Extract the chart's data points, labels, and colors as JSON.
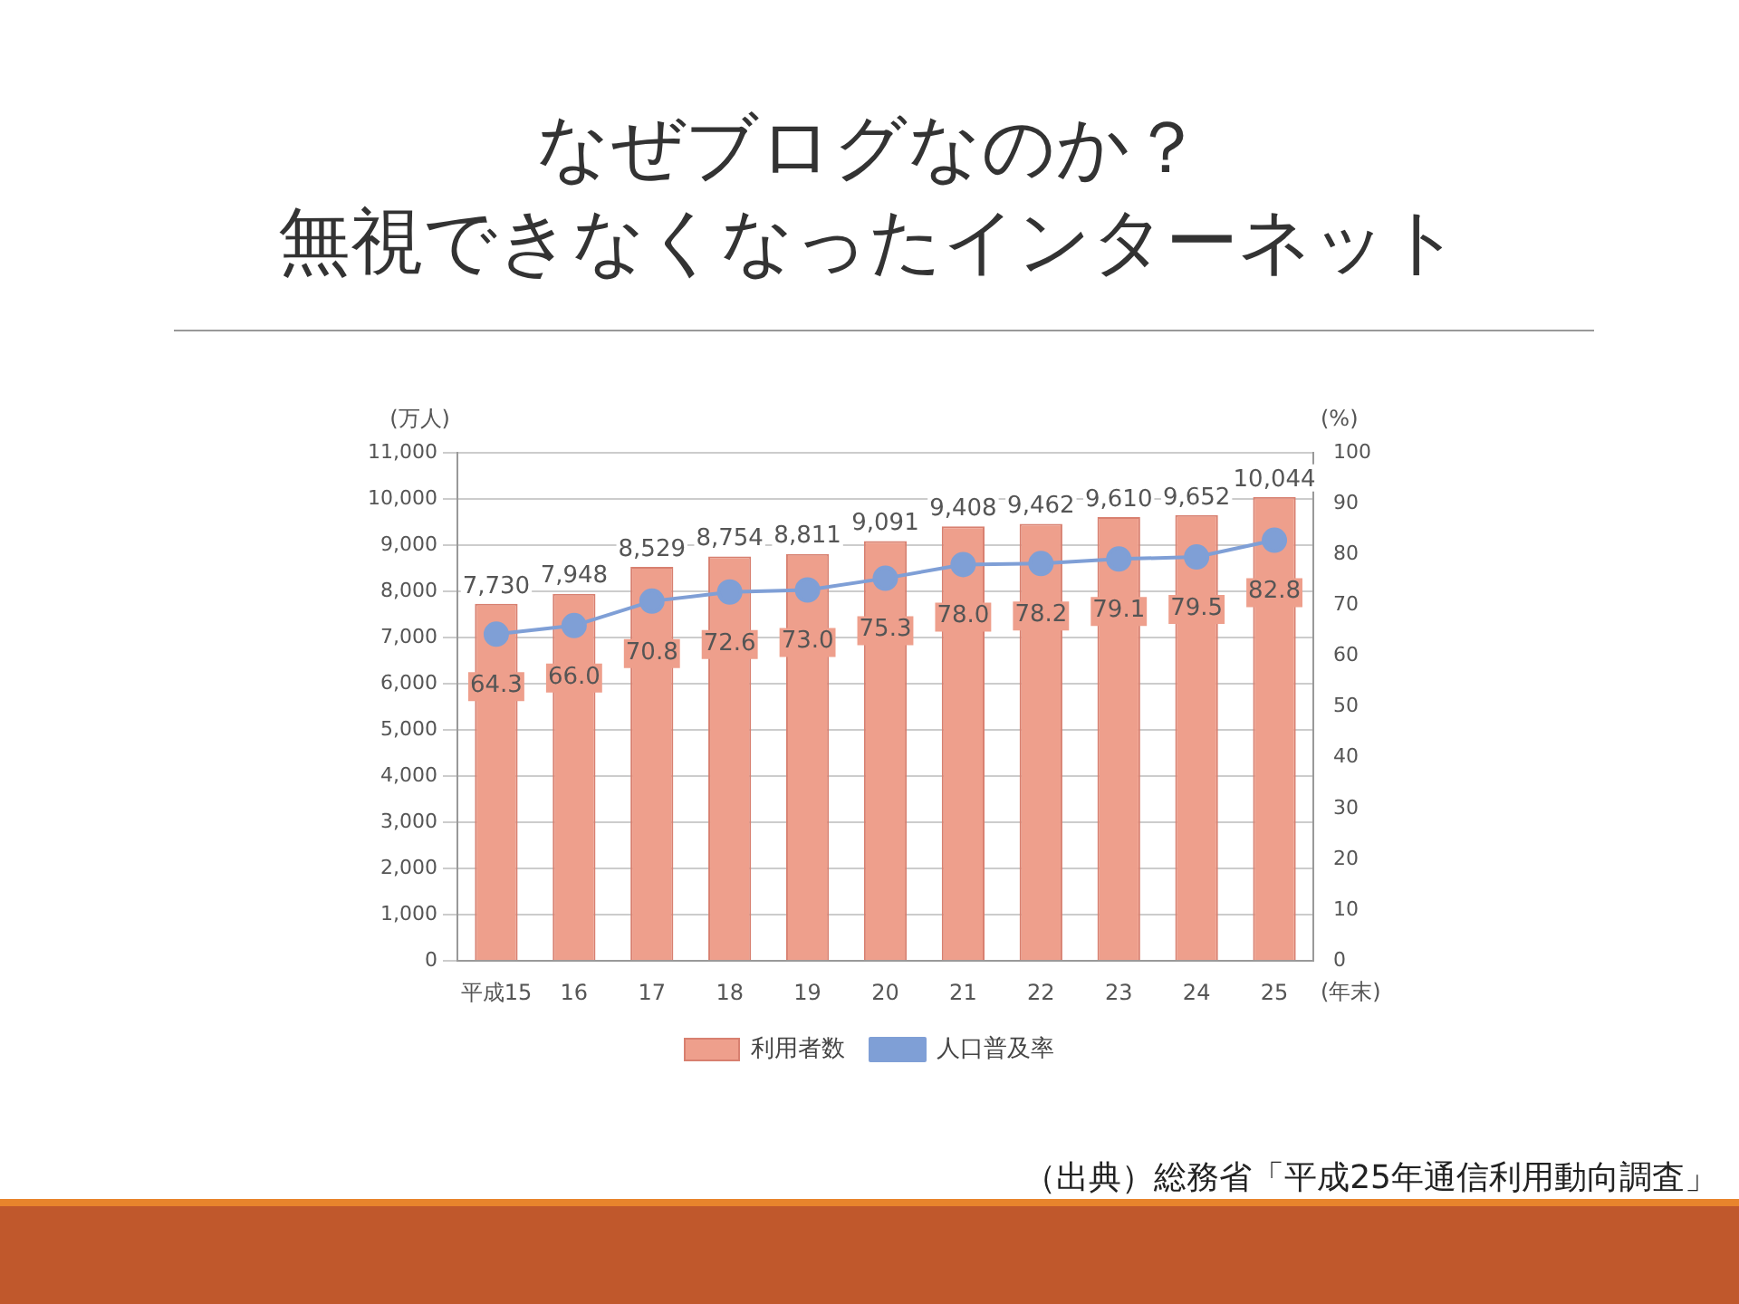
{
  "chart_data": {
    "type": "bar",
    "title": "なぜブログなのか？",
    "subtitle": "無視できなくなったインターネット",
    "categories": [
      "平成15",
      "16",
      "17",
      "18",
      "19",
      "20",
      "21",
      "22",
      "23",
      "24",
      "25"
    ],
    "series": [
      {
        "name": "利用者数",
        "color": "#ee9f8c",
        "values": [
          7730,
          7948,
          8529,
          8754,
          8811,
          9091,
          9408,
          9462,
          9610,
          9652,
          10044
        ],
        "value_labels": [
          "7,730",
          "7,948",
          "8,529",
          "8,754",
          "8,811",
          "9,091",
          "9,408",
          "9,462",
          "9,610",
          "9,652",
          "10,044"
        ]
      },
      {
        "name": "人口普及率",
        "type": "line",
        "axis": "y2",
        "color": "#7f9fd6",
        "values": [
          64.3,
          66.0,
          70.8,
          72.6,
          73.0,
          75.3,
          78.0,
          78.2,
          79.1,
          79.5,
          82.8
        ],
        "value_labels": [
          "64.3",
          "66.0",
          "70.8",
          "72.6",
          "73.0",
          "75.3",
          "78.0",
          "78.2",
          "79.1",
          "79.5",
          "82.8"
        ]
      }
    ],
    "xlabel": "(年末)",
    "ylabel": "(万人)",
    "y2label": "(%)",
    "ylim": [
      0,
      11000
    ],
    "yticks": [
      0,
      {
        "value": 1000,
        "label": "1,000"
      },
      {
        "value": 2000,
        "label": "2,000"
      },
      {
        "value": 3000,
        "label": "3,000"
      },
      {
        "value": 4000,
        "label": "4,000"
      },
      {
        "value": 5000,
        "label": "5,000"
      },
      {
        "value": 6000,
        "label": "6,000"
      },
      {
        "value": 7000,
        "label": "7,000"
      },
      {
        "value": 8000,
        "label": "8,000"
      },
      {
        "value": 9000,
        "label": "9,000"
      },
      {
        "value": 10000,
        "label": "10,000"
      },
      {
        "value": 11000,
        "label": "11,000"
      }
    ],
    "y2lim": [
      0,
      100
    ],
    "y2ticks": [
      0,
      10,
      20,
      30,
      40,
      50,
      60,
      70,
      80,
      90,
      100
    ],
    "grid": "y",
    "legend": "bottom",
    "marker": "circle",
    "annotations": [
      "（出典）総務省「平成25年通信利用動向調査」"
    ]
  }
}
